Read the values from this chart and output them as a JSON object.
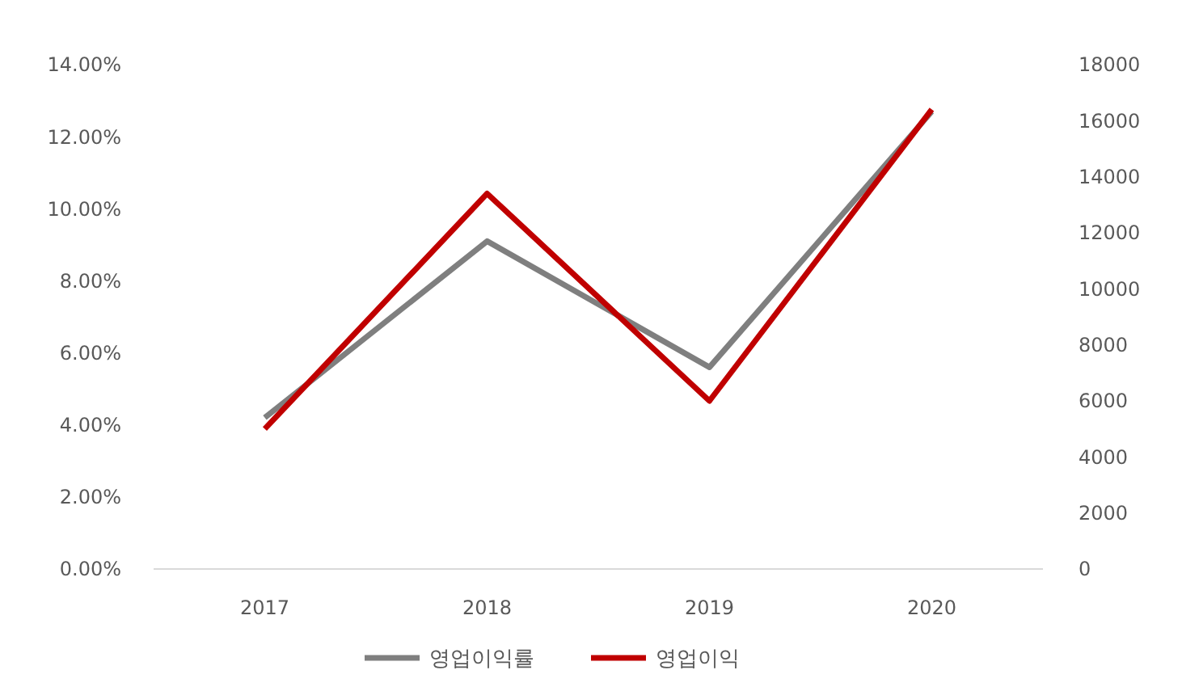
{
  "chart_data": {
    "type": "line",
    "categories": [
      "2017",
      "2018",
      "2019",
      "2020"
    ],
    "series": [
      {
        "name": "영업이익률",
        "color": "#7f7f7f",
        "values": [
          4.2,
          9.1,
          5.6,
          12.7
        ]
      },
      {
        "name": "영업이익",
        "color": "#c00000",
        "values": [
          5000,
          13400,
          6000,
          16400
        ],
        "axis": "y2"
      }
    ],
    "ylim": [
      0,
      14
    ],
    "yticks": [
      {
        "value": 0,
        "label": "0.00%"
      },
      {
        "value": 2,
        "label": "2.00%"
      },
      {
        "value": 4,
        "label": "4.00%"
      },
      {
        "value": 6,
        "label": "6.00%"
      },
      {
        "value": 8,
        "label": "8.00%"
      },
      {
        "value": 10,
        "label": "10.00%"
      },
      {
        "value": 12,
        "label": "12.00%"
      },
      {
        "value": 14,
        "label": "14.00%"
      }
    ],
    "y2lim": [
      0,
      18000
    ],
    "y2ticks": [
      0,
      2000,
      4000,
      6000,
      8000,
      10000,
      12000,
      14000,
      16000,
      18000
    ],
    "grid": false,
    "legend": "bottom",
    "marker": "none",
    "line_style": "solid"
  }
}
